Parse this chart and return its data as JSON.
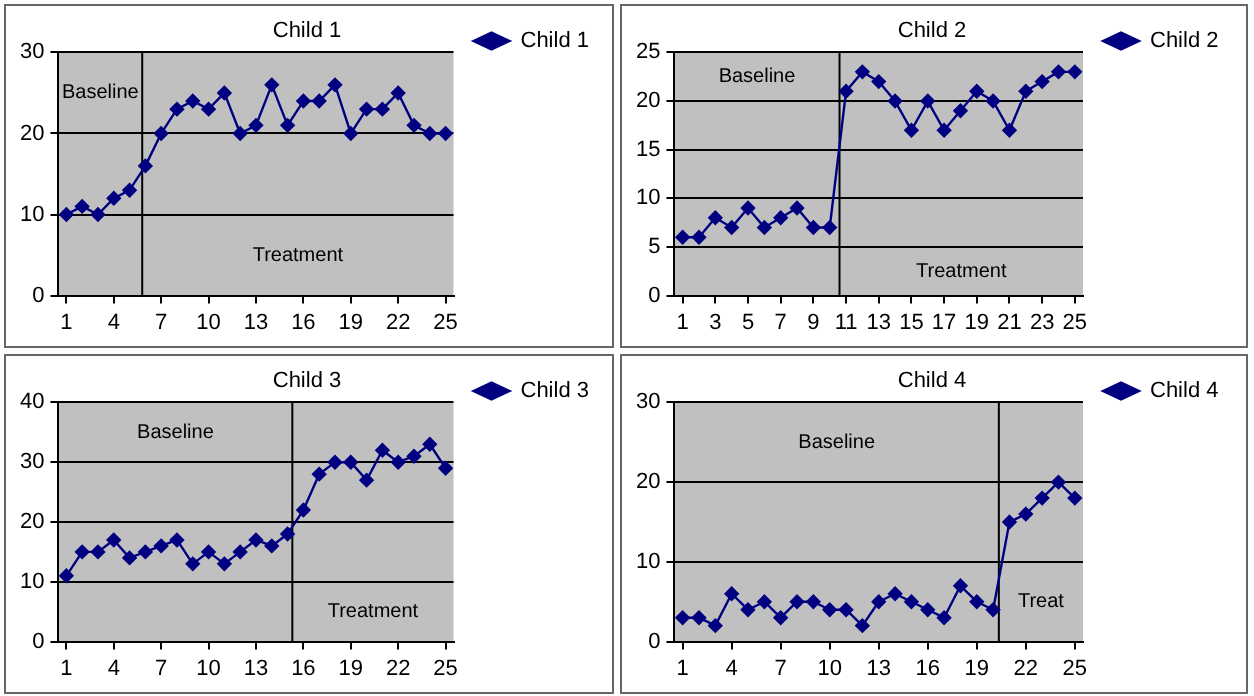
{
  "chart_data": [
    {
      "type": "line",
      "title": "Child 1",
      "x": [
        1,
        2,
        3,
        4,
        5,
        6,
        7,
        8,
        9,
        10,
        11,
        12,
        13,
        14,
        15,
        16,
        17,
        18,
        19,
        20,
        21,
        22,
        23,
        24,
        25
      ],
      "xlim": [
        0.5,
        25.5
      ],
      "xticks": [
        1,
        4,
        7,
        10,
        13,
        16,
        19,
        22,
        25
      ],
      "ylim": [
        0,
        30
      ],
      "yticks": [
        0,
        10,
        20,
        30
      ],
      "grid": "y",
      "legend": "top right",
      "marker": "diamond",
      "line_style": "solid",
      "series": [
        {
          "name": "Child 1",
          "color": "#000080",
          "values": [
            10,
            11,
            10,
            12,
            13,
            16,
            20,
            23,
            24,
            23,
            25,
            20,
            21,
            26,
            21,
            24,
            24,
            26,
            20,
            23,
            23,
            25,
            21,
            20,
            20
          ]
        }
      ],
      "ref_lines": [
        {
          "axis": "x",
          "value": 5.8,
          "color": "#000000"
        }
      ],
      "annotations": [
        "Baseline",
        "Treatment"
      ]
    },
    {
      "type": "line",
      "title": "Child 2",
      "x": [
        1,
        2,
        3,
        4,
        5,
        6,
        7,
        8,
        9,
        10,
        11,
        12,
        13,
        14,
        15,
        16,
        17,
        18,
        19,
        20,
        21,
        22,
        23,
        24,
        25
      ],
      "xlim": [
        0.5,
        25.5
      ],
      "xticks": [
        1,
        3,
        5,
        7,
        9,
        11,
        13,
        15,
        17,
        19,
        21,
        23,
        25
      ],
      "ylim": [
        0,
        25
      ],
      "yticks": [
        0,
        5,
        10,
        15,
        20,
        25
      ],
      "grid": "y",
      "legend": "top right",
      "marker": "diamond",
      "line_style": "solid",
      "series": [
        {
          "name": "Child 2",
          "color": "#000080",
          "values": [
            6,
            6,
            8,
            7,
            9,
            7,
            8,
            9,
            7,
            7,
            21,
            23,
            22,
            20,
            17,
            20,
            17,
            19,
            21,
            20,
            17,
            21,
            22,
            23,
            23
          ]
        }
      ],
      "ref_lines": [
        {
          "axis": "x",
          "value": 10.6,
          "color": "#000000"
        }
      ],
      "annotations": [
        "Baseline",
        "Treatment"
      ]
    },
    {
      "type": "line",
      "title": "Child 3",
      "x": [
        1,
        2,
        3,
        4,
        5,
        6,
        7,
        8,
        9,
        10,
        11,
        12,
        13,
        14,
        15,
        16,
        17,
        18,
        19,
        20,
        21,
        22,
        23,
        24,
        25
      ],
      "xlim": [
        0.5,
        25.5
      ],
      "xticks": [
        1,
        4,
        7,
        10,
        13,
        16,
        19,
        22,
        25
      ],
      "ylim": [
        0,
        40
      ],
      "yticks": [
        0,
        10,
        20,
        30,
        40
      ],
      "grid": "y",
      "legend": "top right",
      "marker": "diamond",
      "line_style": "solid",
      "series": [
        {
          "name": "Child 3",
          "color": "#000080",
          "values": [
            11,
            15,
            15,
            17,
            14,
            15,
            16,
            17,
            13,
            15,
            13,
            15,
            17,
            16,
            18,
            22,
            28,
            30,
            30,
            27,
            32,
            30,
            31,
            33,
            29
          ]
        }
      ],
      "ref_lines": [
        {
          "axis": "x",
          "value": 15.3,
          "color": "#000000"
        }
      ],
      "annotations": [
        "Baseline",
        "Treatment"
      ]
    },
    {
      "type": "line",
      "title": "Child 4",
      "x": [
        1,
        2,
        3,
        4,
        5,
        6,
        7,
        8,
        9,
        10,
        11,
        12,
        13,
        14,
        15,
        16,
        17,
        18,
        19,
        20,
        21,
        22,
        23,
        24,
        25
      ],
      "xlim": [
        0.5,
        25.5
      ],
      "xticks": [
        1,
        4,
        7,
        10,
        13,
        16,
        19,
        22,
        25
      ],
      "ylim": [
        0,
        30
      ],
      "yticks": [
        0,
        10,
        20,
        30
      ],
      "grid": "y",
      "legend": "top right",
      "marker": "diamond",
      "line_style": "solid",
      "series": [
        {
          "name": "Child 4",
          "color": "#000080",
          "values": [
            3,
            3,
            2,
            6,
            4,
            5,
            3,
            5,
            5,
            4,
            4,
            2,
            5,
            6,
            5,
            4,
            3,
            7,
            5,
            4,
            15,
            16,
            18,
            20,
            18
          ]
        }
      ],
      "ref_lines": [
        {
          "axis": "x",
          "value": 20.35,
          "color": "#000000"
        }
      ],
      "annotations": [
        "Baseline",
        "Treat"
      ]
    }
  ]
}
